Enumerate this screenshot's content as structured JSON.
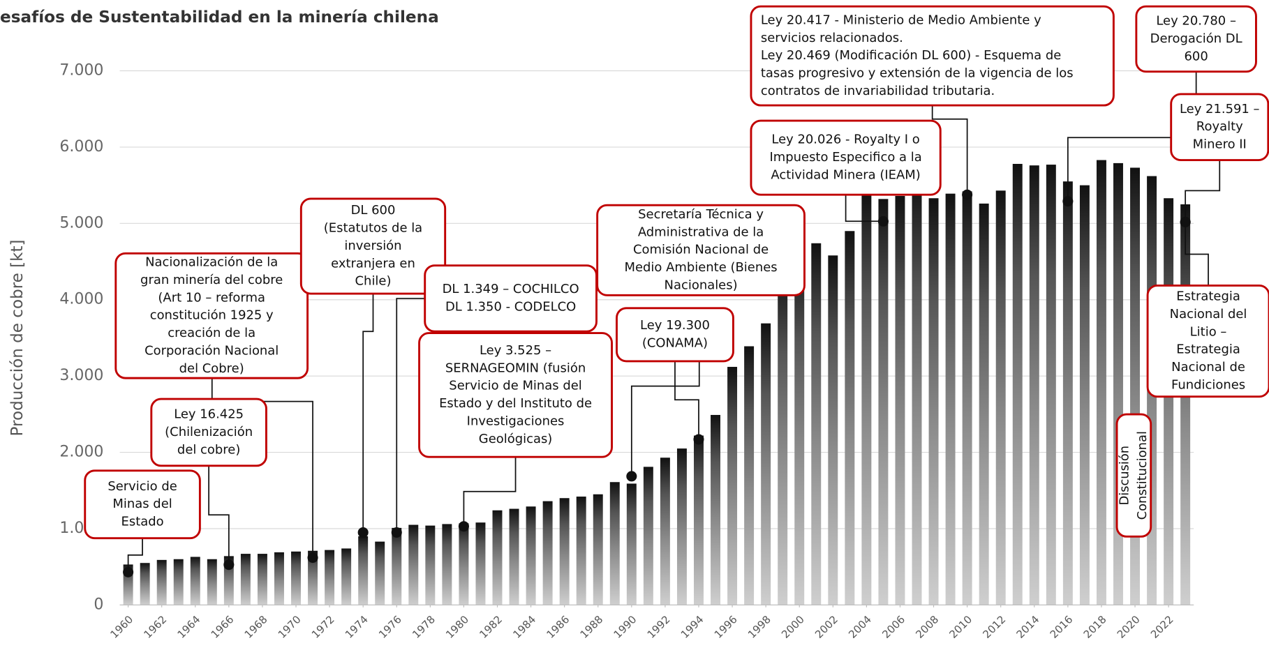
{
  "chart_data": {
    "type": "bar",
    "title": "esafíos de Sustentabilidad en la minería chilena",
    "y_label": "Producción de cobre [kt]",
    "x": [
      1960,
      1961,
      1962,
      1963,
      1964,
      1965,
      1966,
      1967,
      1968,
      1969,
      1970,
      1971,
      1972,
      1973,
      1974,
      1975,
      1976,
      1977,
      1978,
      1979,
      1980,
      1981,
      1982,
      1983,
      1984,
      1985,
      1986,
      1987,
      1988,
      1989,
      1990,
      1991,
      1992,
      1993,
      1994,
      1995,
      1996,
      1997,
      1998,
      1999,
      2000,
      2001,
      2002,
      2003,
      2004,
      2005,
      2006,
      2007,
      2008,
      2009,
      2010,
      2011,
      2012,
      2013,
      2014,
      2015,
      2016,
      2017,
      2018,
      2019,
      2020,
      2021,
      2022,
      2023
    ],
    "values": [
      530,
      550,
      590,
      600,
      630,
      600,
      640,
      670,
      670,
      690,
      700,
      710,
      720,
      740,
      900,
      830,
      1010,
      1050,
      1040,
      1060,
      1070,
      1080,
      1240,
      1260,
      1290,
      1360,
      1400,
      1420,
      1450,
      1610,
      1590,
      1810,
      1930,
      2050,
      2220,
      2490,
      3120,
      3390,
      3690,
      4390,
      4600,
      4740,
      4580,
      4900,
      5410,
      5320,
      5360,
      5560,
      5330,
      5390,
      5420,
      5260,
      5430,
      5780,
      5760,
      5770,
      5550,
      5500,
      5830,
      5790,
      5730,
      5620,
      5330,
      5250
    ],
    "xlim": [
      1959.5,
      2023.5
    ],
    "xticks": [
      1960,
      1962,
      1964,
      1966,
      1968,
      1970,
      1972,
      1974,
      1976,
      1978,
      1980,
      1982,
      1984,
      1986,
      1988,
      1990,
      1992,
      1994,
      1996,
      1998,
      2000,
      2002,
      2004,
      2006,
      2008,
      2010,
      2012,
      2014,
      2016,
      2018,
      2020,
      2022
    ],
    "ylim": [
      0,
      7000
    ],
    "yticks": [
      0,
      {
        "value": 1000,
        "label": "1.000"
      },
      {
        "value": 2000,
        "label": "2.000"
      },
      {
        "value": 3000,
        "label": "3.000"
      },
      {
        "value": 4000,
        "label": "4.000"
      },
      {
        "value": 5000,
        "label": "5.000"
      },
      {
        "value": 6000,
        "label": "6.000"
      },
      {
        "value": 7000,
        "label": "7.000"
      }
    ],
    "grid": true,
    "annotations": [
      {
        "lines": [
          "Servicio de",
          "Minas del",
          "Estado"
        ],
        "x": 1960,
        "y": 430
      },
      {
        "lines": [
          "Ley 16.425",
          "(Chilenización",
          "del cobre)"
        ],
        "x": 1966,
        "y": 527
      },
      {
        "lines": [
          "Nacionalización de la",
          "gran minería del cobre",
          "(Art 10 – reforma",
          "constitución 1925 y",
          "creación de la",
          "Corporación Nacional",
          "del Cobre)"
        ],
        "x": 1971,
        "y": 620
      },
      {
        "lines": [
          "DL 600",
          "(Estatutos de la",
          "inversión",
          "extranjera en",
          "Chile)"
        ],
        "x": 1974,
        "y": 950
      },
      {
        "lines": [
          "DL 1.349 – COCHILCO",
          "DL 1.350 - CODELCO"
        ],
        "x": 1976,
        "y": 950
      },
      {
        "lines": [
          "Ley 3.525 –",
          "SERNAGEOMIN (fusión",
          "Servicio de Minas del",
          "Estado y del Instituto de",
          "Investigaciones",
          "Geológicas)"
        ],
        "x": 1980,
        "y": 1030
      },
      {
        "lines": [
          "Secretaría Técnica y",
          "Administrativa de la",
          "Comisión Nacional de",
          "Medio Ambiente (Bienes",
          "Nacionales)"
        ],
        "x": 1990,
        "y": 1686
      },
      {
        "lines": [
          "Ley 19.300",
          "(CONAMA)"
        ],
        "x": 1994,
        "y": 2170
      },
      {
        "lines": [
          "Ley 20.026 - Royalty I o",
          "Impuesto Especifico a la",
          "Actividad Minera (IEAM)"
        ],
        "x": 2005,
        "y": 5027
      },
      {
        "lines": [
          "Ley 20.417 - Ministerio de Medio Ambiente y",
          "servicios relacionados.",
          "Ley 20.469 (Modificación DL 600) - Esquema de",
          "tasas progresivo y extensión de la vigencia de los",
          "contratos de invariabilidad tributaria."
        ],
        "x": 2010,
        "y": 5376
      },
      {
        "lines": [
          "Ley 20.780 –",
          "Derogación DL",
          "600"
        ],
        "x": 2016,
        "y": 5290
      },
      {
        "lines": [
          "Ley 21.591 –",
          "Royalty",
          "Minero II"
        ],
        "x": 2023,
        "y": 5018
      },
      {
        "lines": [
          "Estrategia",
          "Nacional del",
          "Litio –",
          "Estrategia",
          "Nacional de",
          "Fundiciones"
        ],
        "x": 2023,
        "y": 5018
      },
      {
        "lines": [
          "Discusión",
          "Constitucional"
        ]
      }
    ]
  }
}
